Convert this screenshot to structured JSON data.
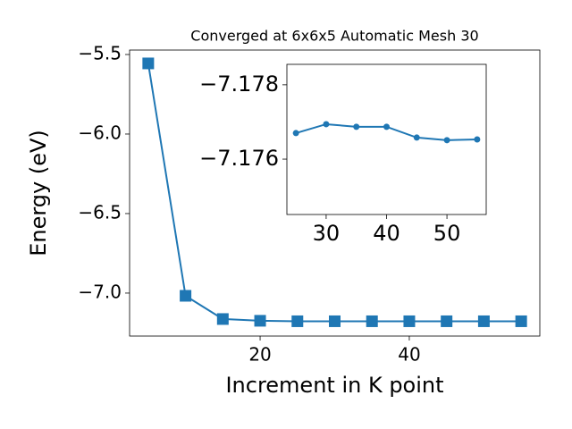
{
  "chart_data": [
    {
      "type": "line",
      "title": "Converged at 6x6x5 Automatic Mesh 30",
      "x_label": "Increment in K point",
      "y_label": "Energy (eV)",
      "x": [
        5,
        10,
        15,
        20,
        25,
        30,
        35,
        40,
        45,
        50,
        55
      ],
      "series": [
        {
          "color": "#1f77b4",
          "marker": "square",
          "values": [
            -5.556,
            -7.017,
            -7.163,
            -7.174,
            -7.177,
            -7.177,
            -7.177,
            -7.177,
            -7.177,
            -7.177,
            -7.177
          ]
        }
      ],
      "xlim": [
        2.5,
        57.5
      ],
      "ylim": [
        -7.27,
        -5.472
      ],
      "xticks": [
        20,
        40
      ],
      "yticks": [
        {
          "value": -7.0,
          "label": "−7.0"
        },
        {
          "value": -6.5,
          "label": "−6.5"
        },
        {
          "value": -6.0,
          "label": "−6.0"
        },
        {
          "value": -5.5,
          "label": "−5.5"
        }
      ]
    },
    {
      "type": "line",
      "x": [
        25,
        30,
        35,
        40,
        45,
        50,
        55
      ],
      "series": [
        {
          "color": "#1f77b4",
          "marker": "circle",
          "values": [
            -7.1767,
            -7.17694,
            -7.17687,
            -7.17687,
            -7.17658,
            -7.17651,
            -7.17653
          ]
        }
      ],
      "xlim": [
        23.5,
        56.5
      ],
      "ylim": [
        -7.17451,
        -7.17855
      ],
      "xticks": [
        30,
        40,
        50
      ],
      "yticks": [
        {
          "value": -7.176,
          "label": "−7.176"
        },
        {
          "value": -7.178,
          "label": "−7.178"
        }
      ]
    }
  ]
}
